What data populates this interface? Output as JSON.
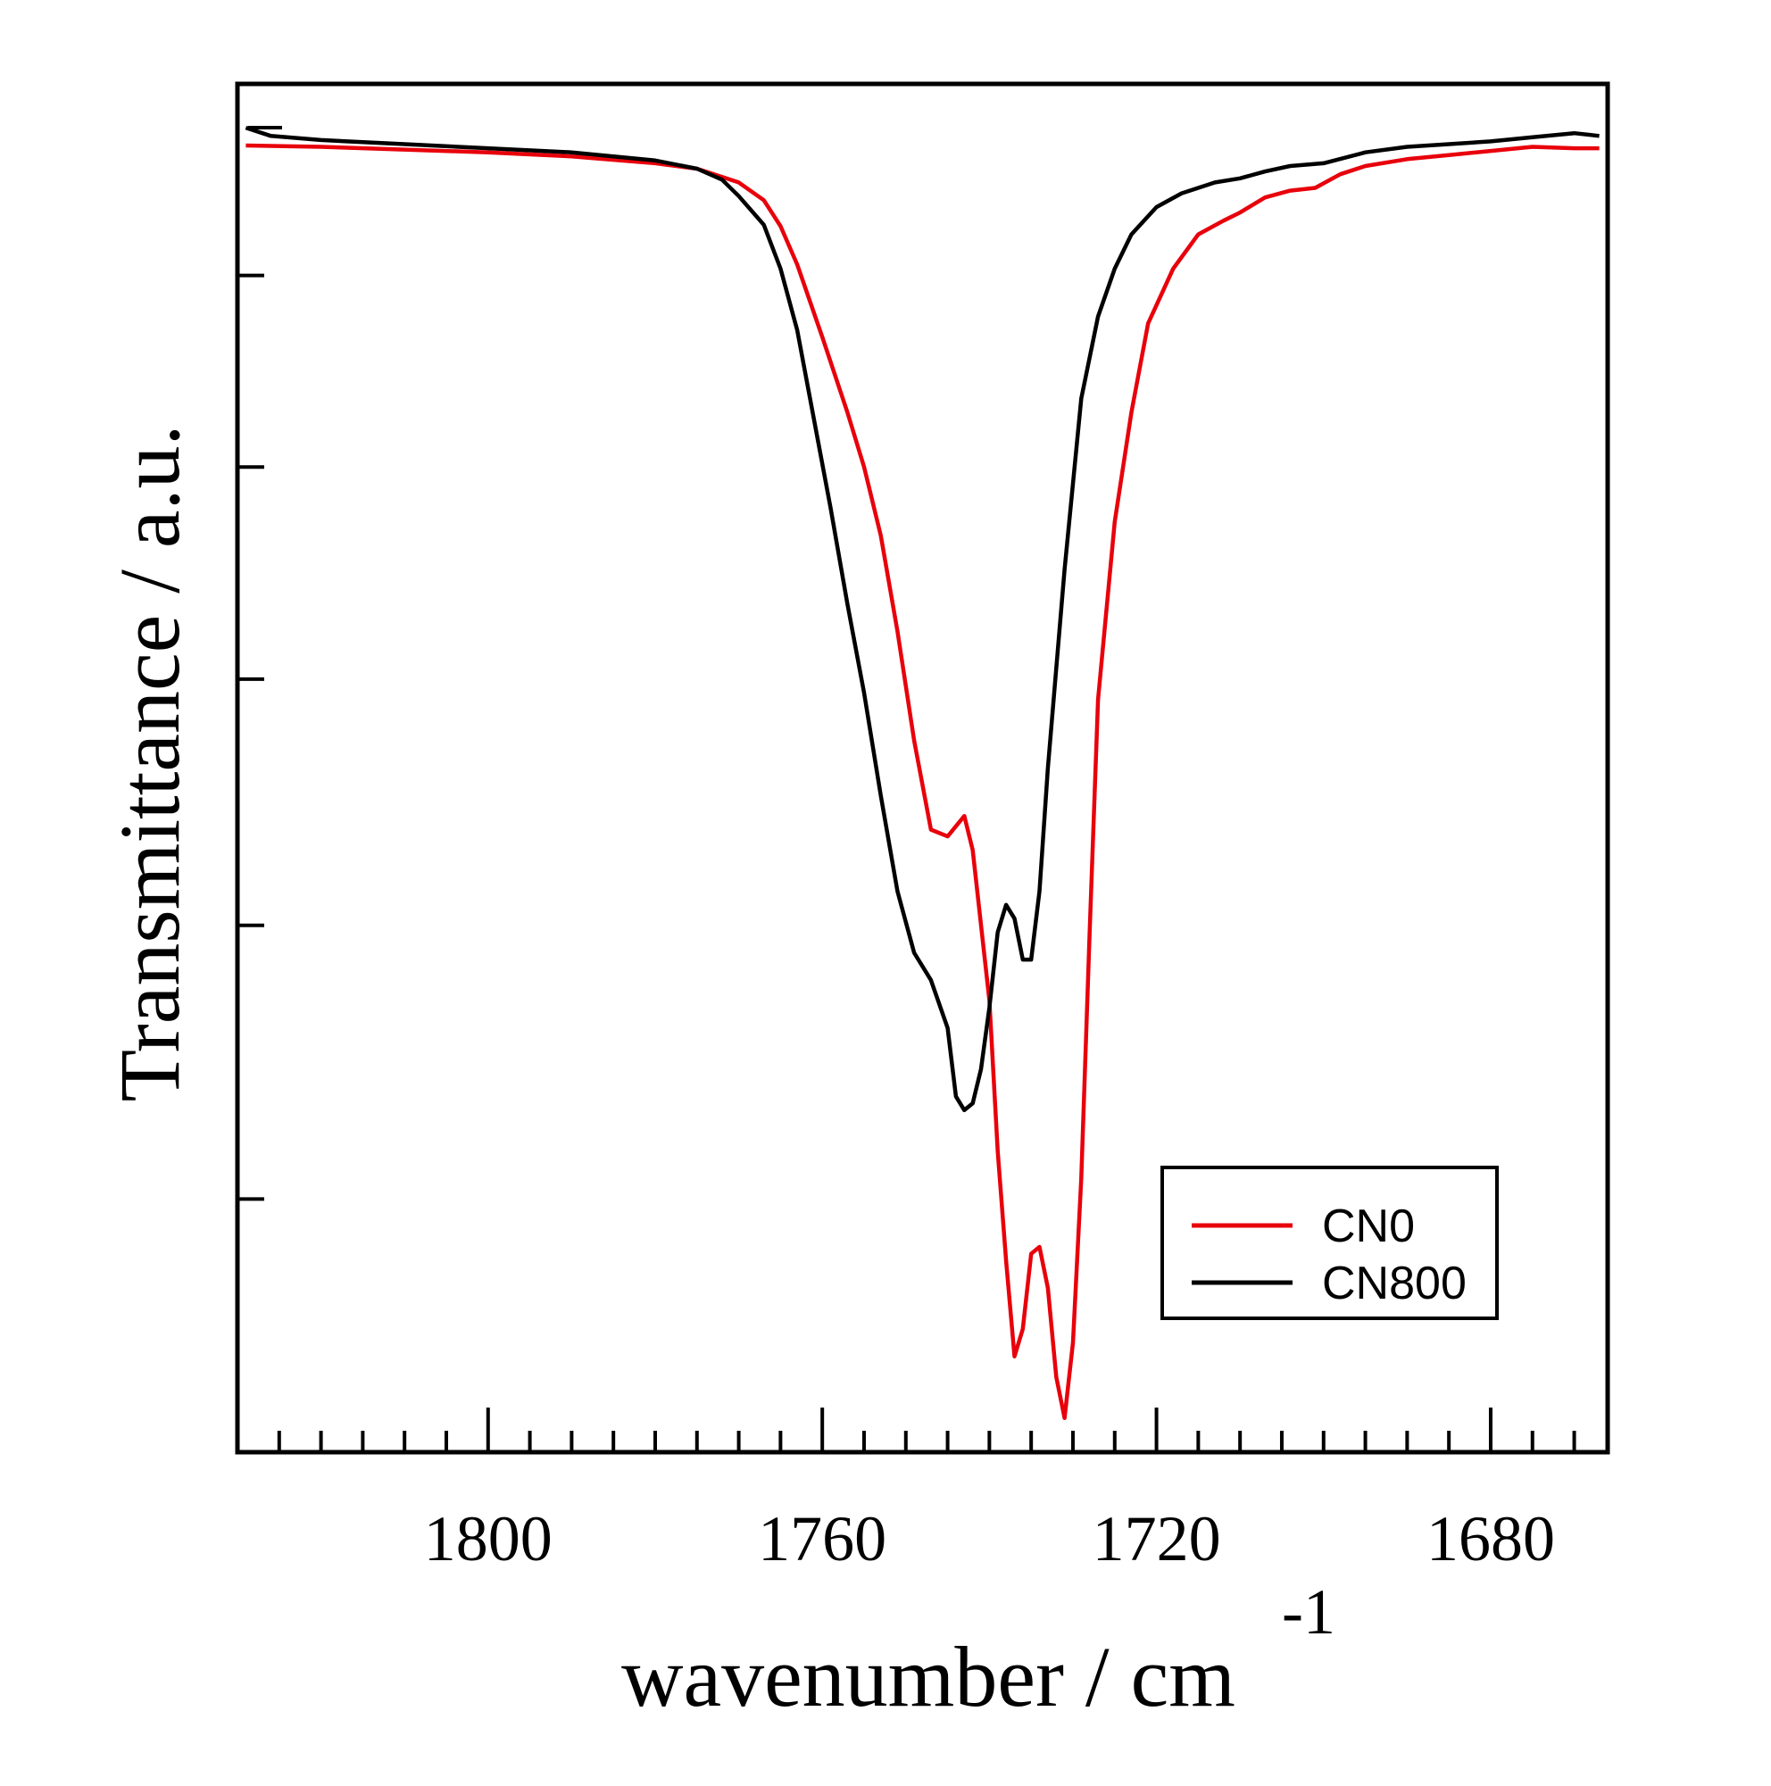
{
  "chart_data": {
    "type": "line",
    "xlabel": "wavenumber / cm",
    "xlabel_superscript": "-1",
    "ylabel": "Transmittance / a.u.",
    "xlim": [
      1830,
      1666
    ],
    "x_reversed": true,
    "ylim": [
      0,
      100
    ],
    "xticks": [
      1800,
      1760,
      1720,
      1680
    ],
    "x_minor_step": 5,
    "y_ticks_unlabeled": [
      86,
      72,
      56.5,
      38.5,
      18.5
    ],
    "grid": false,
    "legend": {
      "position": "bottom-right",
      "entries": [
        "CN0",
        "CN800"
      ]
    },
    "series": [
      {
        "name": "CN0",
        "color": "#e8000b",
        "points": [
          [
            1829,
            95.5
          ],
          [
            1820,
            95.4
          ],
          [
            1810,
            95.2
          ],
          [
            1800,
            95.0
          ],
          [
            1790,
            94.7
          ],
          [
            1780,
            94.2
          ],
          [
            1775,
            93.8
          ],
          [
            1770,
            92.8
          ],
          [
            1767,
            91.5
          ],
          [
            1765,
            89.6
          ],
          [
            1763,
            86.8
          ],
          [
            1760,
            81.5
          ],
          [
            1757,
            76
          ],
          [
            1755,
            72
          ],
          [
            1753,
            67
          ],
          [
            1751,
            60
          ],
          [
            1749,
            52
          ],
          [
            1747,
            45.5
          ],
          [
            1745,
            45
          ],
          [
            1743,
            46.5
          ],
          [
            1742,
            44
          ],
          [
            1740,
            33
          ],
          [
            1739,
            22
          ],
          [
            1738,
            14
          ],
          [
            1737,
            7
          ],
          [
            1736,
            9
          ],
          [
            1735,
            14.5
          ],
          [
            1734,
            15
          ],
          [
            1733,
            12
          ],
          [
            1732,
            5.5
          ],
          [
            1731,
            2.5
          ],
          [
            1730,
            8
          ],
          [
            1729,
            20
          ],
          [
            1728,
            38
          ],
          [
            1727,
            55
          ],
          [
            1725,
            68
          ],
          [
            1723,
            76
          ],
          [
            1721,
            82.5
          ],
          [
            1718,
            86.5
          ],
          [
            1715,
            89
          ],
          [
            1712,
            90
          ],
          [
            1710,
            90.6
          ],
          [
            1707,
            91.7
          ],
          [
            1704,
            92.2
          ],
          [
            1701,
            92.4
          ],
          [
            1698,
            93.4
          ],
          [
            1695,
            94
          ],
          [
            1690,
            94.5
          ],
          [
            1685,
            94.8
          ],
          [
            1680,
            95.1
          ],
          [
            1675,
            95.4
          ],
          [
            1670,
            95.3
          ],
          [
            1667,
            95.3
          ]
        ]
      },
      {
        "name": "CN800",
        "color": "#000000",
        "points": [
          [
            1829,
            96.8
          ],
          [
            1826,
            96.2
          ],
          [
            1820,
            95.9
          ],
          [
            1810,
            95.6
          ],
          [
            1800,
            95.3
          ],
          [
            1790,
            95.0
          ],
          [
            1780,
            94.4
          ],
          [
            1775,
            93.8
          ],
          [
            1772,
            93.0
          ],
          [
            1770,
            91.8
          ],
          [
            1767,
            89.7
          ],
          [
            1765,
            86.5
          ],
          [
            1763,
            82
          ],
          [
            1761,
            75.5
          ],
          [
            1759,
            69
          ],
          [
            1757,
            62
          ],
          [
            1755,
            55.5
          ],
          [
            1753,
            48
          ],
          [
            1751,
            41
          ],
          [
            1749,
            36.5
          ],
          [
            1747,
            34.5
          ],
          [
            1745,
            31
          ],
          [
            1744,
            26
          ],
          [
            1743,
            25
          ],
          [
            1742,
            25.5
          ],
          [
            1741,
            28
          ],
          [
            1740,
            32.5
          ],
          [
            1739,
            38
          ],
          [
            1738,
            40
          ],
          [
            1737,
            39
          ],
          [
            1736,
            36
          ],
          [
            1735,
            36
          ],
          [
            1734,
            41
          ],
          [
            1733,
            50
          ],
          [
            1731,
            64.5
          ],
          [
            1729,
            77
          ],
          [
            1727,
            83
          ],
          [
            1725,
            86.5
          ],
          [
            1723,
            89
          ],
          [
            1720,
            91
          ],
          [
            1717,
            92
          ],
          [
            1713,
            92.8
          ],
          [
            1710,
            93.1
          ],
          [
            1707,
            93.6
          ],
          [
            1704,
            94.0
          ],
          [
            1700,
            94.2
          ],
          [
            1695,
            95.0
          ],
          [
            1690,
            95.4
          ],
          [
            1685,
            95.6
          ],
          [
            1680,
            95.8
          ],
          [
            1675,
            96.1
          ],
          [
            1670,
            96.4
          ],
          [
            1667,
            96.2
          ]
        ]
      }
    ]
  }
}
